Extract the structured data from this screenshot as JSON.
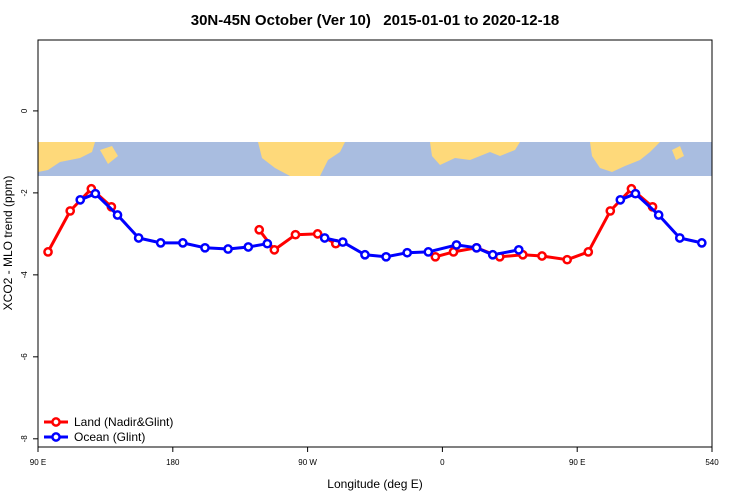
{
  "chart_data": {
    "type": "line",
    "title": "30N-45N October (Ver 10)   2015-01-01 to 2020-12-18",
    "x_label": "Longitude (deg E)",
    "y_label": "XCO2 - MLO trend (ppm)",
    "xlim": [
      90,
      540
    ],
    "ylim": [
      -8.2,
      1.73
    ],
    "xticks": [
      {
        "value": 90,
        "label": "90 E"
      },
      180,
      {
        "value": 270,
        "label": "90 W"
      },
      {
        "value": 360,
        "label": "0"
      },
      {
        "value": 450,
        "label": "90 E"
      },
      540
    ],
    "yticks": [
      0,
      -2,
      -4,
      -6,
      -8
    ],
    "legend": "bottom-left",
    "series": [
      {
        "name": "Land (Nadir&Glint)",
        "color": "#ff0000",
        "x": [
          96.7,
          111.5,
          125.6,
          139,
          null,
          237.7,
          247.8,
          261.9,
          276.7,
          288.8,
          null,
          355.3,
          367.4,
          382.8,
          398.3,
          413.7,
          426.5,
          443.3,
          457.4,
          472.1,
          486.2,
          500.3
        ],
        "values": [
          -3.44,
          -2.44,
          -1.9,
          -2.34,
          null,
          -2.9,
          -3.39,
          -3.02,
          -3.0,
          -3.24,
          null,
          -3.56,
          -3.44,
          -3.34,
          -3.56,
          -3.51,
          -3.54,
          -3.63,
          -3.44,
          -2.44,
          -1.9,
          -2.34
        ]
      },
      {
        "name": "Ocean (Glint)",
        "color": "#0000ff",
        "x": [
          118.2,
          128.3,
          143.1,
          157.2,
          171.9,
          186.7,
          201.5,
          216.9,
          230.4,
          243.1,
          null,
          281.4,
          293.5,
          308.3,
          322.4,
          336.5,
          350.6,
          369.4,
          382.8,
          393.6,
          411.0,
          null,
          478.8,
          488.9,
          504.4,
          518.5,
          533.2
        ],
        "values": [
          -2.17,
          -2.02,
          -2.54,
          -3.1,
          -3.22,
          -3.22,
          -3.34,
          -3.37,
          -3.32,
          -3.24,
          null,
          -3.1,
          -3.2,
          -3.51,
          -3.56,
          -3.46,
          -3.44,
          -3.27,
          -3.34,
          -3.51,
          -3.39,
          null,
          -2.17,
          -2.02,
          -2.54,
          -3.1,
          -3.22
        ]
      }
    ]
  }
}
